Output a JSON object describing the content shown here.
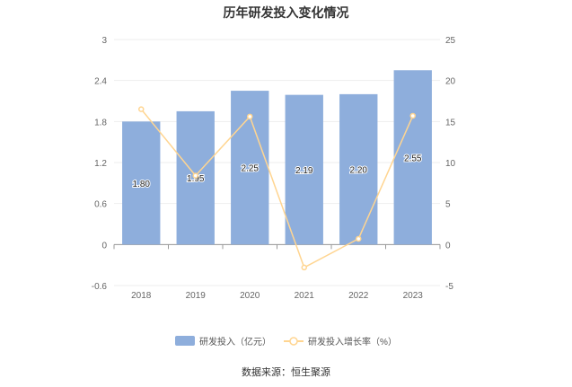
{
  "title": "历年研发投入变化情况",
  "source": "数据来源：恒生聚源",
  "colors": {
    "bar": "#8eaedc",
    "line": "#ffd591",
    "grid": "#eeeeee",
    "axis": "#999999"
  },
  "legend": [
    {
      "name": "研发投入（亿元）",
      "icon": "bar-swatch"
    },
    {
      "name": "研发投入增长率（%）",
      "icon": "line-circle-swatch"
    }
  ],
  "chart_data": {
    "type": "bar",
    "categories": [
      "2018",
      "2019",
      "2020",
      "2021",
      "2022",
      "2023"
    ],
    "series": [
      {
        "name": "研发投入（亿元）",
        "type": "bar",
        "axis": "left",
        "values": [
          1.8,
          1.95,
          2.25,
          2.19,
          2.2,
          2.55
        ],
        "labels": [
          "1.80",
          "1.95",
          "2.25",
          "2.19",
          "2.20",
          "2.55"
        ]
      },
      {
        "name": "研发投入增长率（%）",
        "type": "line",
        "axis": "right",
        "values": [
          16.5,
          8.4,
          15.6,
          -2.8,
          0.7,
          15.7
        ]
      }
    ],
    "y_left": {
      "min": -0.6,
      "max": 3,
      "ticks": [
        "-0.6",
        "0",
        "0.6",
        "1.2",
        "1.8",
        "2.4",
        "3"
      ]
    },
    "y_right": {
      "min": -5,
      "max": 25,
      "ticks": [
        "-5",
        "0",
        "5",
        "10",
        "15",
        "20",
        "25"
      ]
    },
    "grid": true,
    "legend_position": "bottom"
  }
}
